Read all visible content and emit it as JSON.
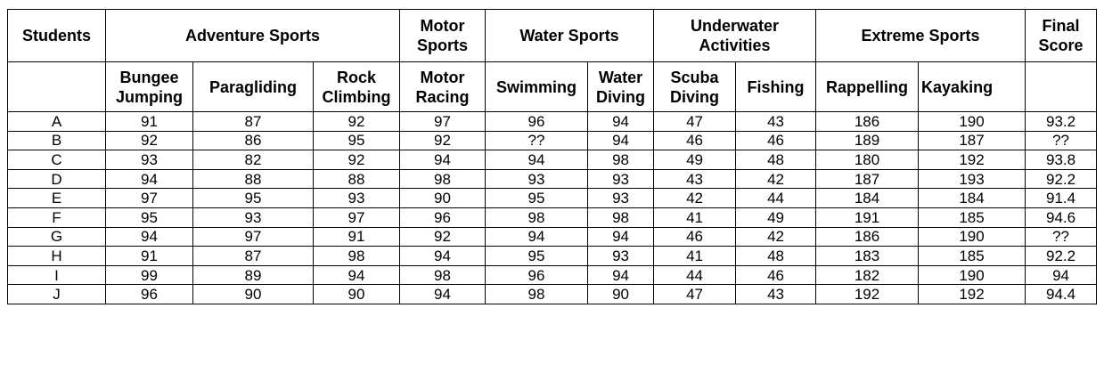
{
  "group_headers": {
    "students": "Students",
    "adventure": "Adventure Sports",
    "motor_1": "Motor",
    "motor_2": "Sports",
    "water": "Water Sports",
    "underwater_1": "Underwater",
    "underwater_2": "Activities",
    "extreme": "Extreme Sports",
    "final_1": "Final",
    "final_2": "Score"
  },
  "sub_headers": {
    "bungee_1": "Bungee",
    "bungee_2": "Jumping",
    "paragliding": "Paragliding",
    "rock_1": "Rock",
    "rock_2": "Climbing",
    "motor_1": "Motor",
    "motor_2": "Racing",
    "swimming": "Swimming",
    "water_diving_1": "Water",
    "water_diving_2": "Diving",
    "scuba_1": "Scuba",
    "scuba_2": "Diving",
    "fishing": "Fishing",
    "rappelling": "Rappelling",
    "kayaking": "Kayaking"
  },
  "rows": [
    [
      "A",
      "91",
      "87",
      "92",
      "97",
      "96",
      "94",
      "47",
      "43",
      "186",
      "190",
      "93.2"
    ],
    [
      "B",
      "92",
      "86",
      "95",
      "92",
      "??",
      "94",
      "46",
      "46",
      "189",
      "187",
      "??"
    ],
    [
      "C",
      "93",
      "82",
      "92",
      "94",
      "94",
      "98",
      "49",
      "48",
      "180",
      "192",
      "93.8"
    ],
    [
      "D",
      "94",
      "88",
      "88",
      "98",
      "93",
      "93",
      "43",
      "42",
      "187",
      "193",
      "92.2"
    ],
    [
      "E",
      "97",
      "95",
      "93",
      "90",
      "95",
      "93",
      "42",
      "44",
      "184",
      "184",
      "91.4"
    ],
    [
      "F",
      "95",
      "93",
      "97",
      "96",
      "98",
      "98",
      "41",
      "49",
      "191",
      "185",
      "94.6"
    ],
    [
      "G",
      "94",
      "97",
      "91",
      "92",
      "94",
      "94",
      "46",
      "42",
      "186",
      "190",
      "??"
    ],
    [
      "H",
      "91",
      "87",
      "98",
      "94",
      "95",
      "93",
      "41",
      "48",
      "183",
      "185",
      "92.2"
    ],
    [
      "I",
      "99",
      "89",
      "94",
      "98",
      "96",
      "94",
      "44",
      "46",
      "182",
      "190",
      "94"
    ],
    [
      "J",
      "96",
      "90",
      "90",
      "94",
      "98",
      "90",
      "47",
      "43",
      "192",
      "192",
      "94.4"
    ]
  ]
}
